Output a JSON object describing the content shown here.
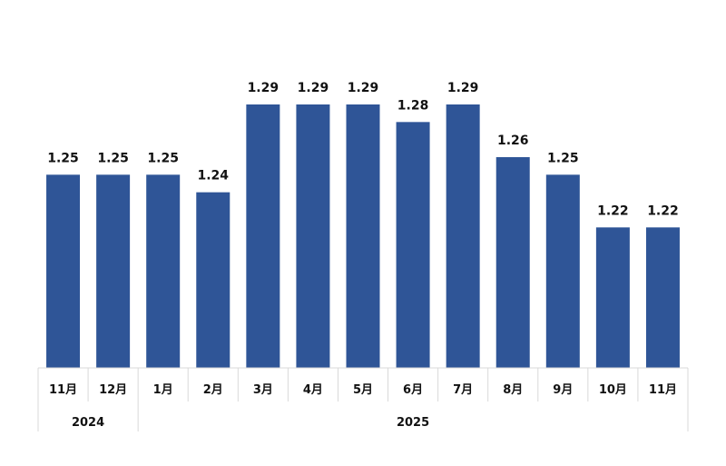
{
  "chart_data": {
    "type": "bar",
    "categories": [
      "11月",
      "12月",
      "1月",
      "2月",
      "3月",
      "4月",
      "5月",
      "6月",
      "7月",
      "8月",
      "9月",
      "10月",
      "11月"
    ],
    "values": [
      1.25,
      1.25,
      1.25,
      1.24,
      1.29,
      1.29,
      1.29,
      1.28,
      1.29,
      1.26,
      1.25,
      1.22,
      1.22
    ],
    "value_labels": [
      "1.25",
      "1.25",
      "1.25",
      "1.24",
      "1.29",
      "1.29",
      "1.29",
      "1.28",
      "1.29",
      "1.26",
      "1.25",
      "1.22",
      "1.22"
    ],
    "year_groups": [
      {
        "label": "2024",
        "count": 2
      },
      {
        "label": "2025",
        "count": 11
      }
    ],
    "ylim": [
      1.14,
      1.29
    ],
    "bar_color": "#2f5597",
    "grid": false,
    "title": "",
    "xlabel": "",
    "ylabel": ""
  }
}
